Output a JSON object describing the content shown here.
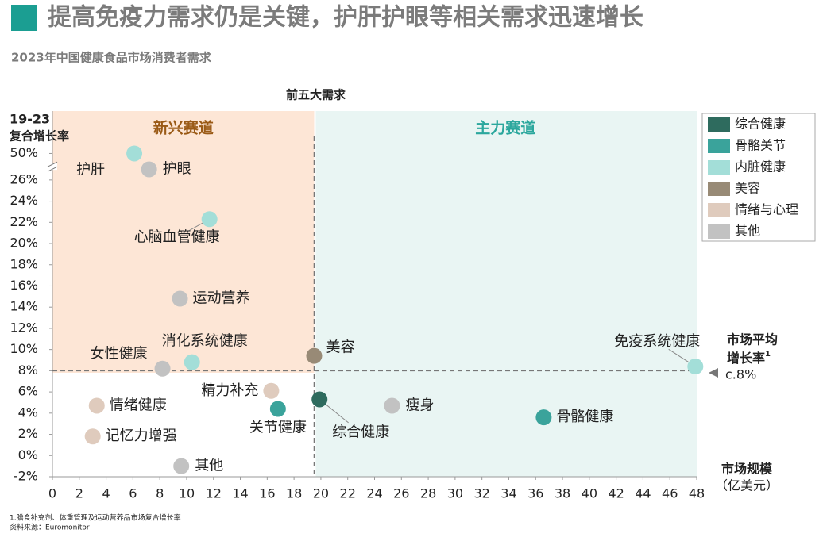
{
  "chart_data": {
    "type": "scatter",
    "title": "提高免疫力需求仍是关键，护肝护眼等相关需求迅速增长",
    "subtitle": "2023年中国健康食品市场消费者需求",
    "y_label": [
      "19-23",
      "复合增长率"
    ],
    "x_label": [
      "市场规模",
      "（亿美元）"
    ],
    "top_note": "前五大需求",
    "regions": [
      {
        "label": "新兴赛道",
        "from": 0,
        "to": 19.5,
        "color": "#fde6d6",
        "text_color": "#9a5a16"
      },
      {
        "label": "主力赛道",
        "from": 19.5,
        "to": 48,
        "color": "#e9f5f3",
        "text_color": "#2ba79d"
      }
    ],
    "reference_lines": {
      "x": 19.5,
      "y": 8
    },
    "average_note": {
      "line1": "市场平均",
      "line2": "增长率",
      "sup": "1",
      "value_label": "c.8%"
    },
    "xlim": [
      0,
      48
    ],
    "xticks": [
      0,
      2,
      4,
      6,
      8,
      10,
      12,
      14,
      16,
      18,
      20,
      22,
      24,
      26,
      28,
      30,
      32,
      34,
      36,
      38,
      40,
      42,
      44,
      46,
      48
    ],
    "ylim": [
      -2,
      54
    ],
    "ybreak": [
      27.5,
      49
    ],
    "yticks": [
      {
        "value": -2,
        "label": "-2%"
      },
      {
        "value": 0,
        "label": "0%"
      },
      {
        "value": 2,
        "label": "2%"
      },
      {
        "value": 4,
        "label": "4%"
      },
      {
        "value": 6,
        "label": "6%"
      },
      {
        "value": 8,
        "label": "8%"
      },
      {
        "value": 10,
        "label": "10%"
      },
      {
        "value": 12,
        "label": "12%"
      },
      {
        "value": 14,
        "label": "14%"
      },
      {
        "value": 16,
        "label": "16%"
      },
      {
        "value": 18,
        "label": "18%"
      },
      {
        "value": 20,
        "label": "20%"
      },
      {
        "value": 22,
        "label": "22%"
      },
      {
        "value": 24,
        "label": "24%"
      },
      {
        "value": 26,
        "label": "26%"
      },
      {
        "value": 50,
        "label": "50%"
      }
    ],
    "series": [
      {
        "name": "综合健康",
        "color": "#2e6b5e",
        "points": [
          {
            "label": "综合健康",
            "x": 19.9,
            "y": 5.3
          }
        ]
      },
      {
        "name": "骨骼关节",
        "color": "#3aa39b",
        "points": [
          {
            "label": "关节健康",
            "x": 16.8,
            "y": 4.4
          },
          {
            "label": "骨骼健康",
            "x": 36.6,
            "y": 3.6
          }
        ]
      },
      {
        "name": "内脏健康",
        "color": "#a3ded8",
        "points": [
          {
            "label": "护肝",
            "x": 6.1,
            "y": 50
          },
          {
            "label": "心脑血管健康",
            "x": 11.7,
            "y": 22.3
          },
          {
            "label": "消化系统健康",
            "x": 10.4,
            "y": 8.8
          },
          {
            "label": "免疫系统健康",
            "x": 47.9,
            "y": 8.4
          }
        ]
      },
      {
        "name": "美容",
        "color": "#988a76",
        "points": [
          {
            "label": "美容",
            "x": 19.5,
            "y": 9.4
          }
        ]
      },
      {
        "name": "情绪与心理",
        "color": "#dfcbbd",
        "points": [
          {
            "label": "精力补充",
            "x": 16.3,
            "y": 6.1
          },
          {
            "label": "情绪健康",
            "x": 3.3,
            "y": 4.7
          },
          {
            "label": "记忆力增强",
            "x": 3.0,
            "y": 1.8
          }
        ]
      },
      {
        "name": "其他",
        "color": "#c2c2c2",
        "points": [
          {
            "label": "护眼",
            "x": 7.2,
            "y": 27
          },
          {
            "label": "运动营养",
            "x": 9.5,
            "y": 14.8
          },
          {
            "label": "女性健康",
            "x": 8.2,
            "y": 8.2
          },
          {
            "label": "瘦身",
            "x": 25.3,
            "y": 4.7
          },
          {
            "label": "其他",
            "x": 9.6,
            "y": -1.0
          }
        ]
      }
    ],
    "footnotes": [
      "1.膳食补充剂、体重管理及运动营养品市场复合增长率",
      "资料来源：Euromonitor"
    ]
  }
}
